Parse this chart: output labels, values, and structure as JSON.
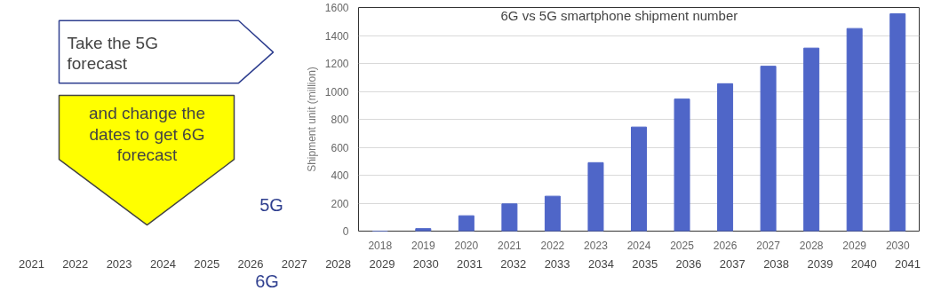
{
  "chart_data": {
    "type": "bar",
    "title": "6G vs 5G smartphone shipment number",
    "ylabel": "Shipment unit (million)",
    "categories": [
      "2018",
      "2019",
      "2020",
      "2021",
      "2022",
      "2023",
      "2024",
      "2025",
      "2026",
      "2027",
      "2028",
      "2029",
      "2030"
    ],
    "values": [
      0,
      18,
      110,
      195,
      250,
      490,
      745,
      945,
      1055,
      1180,
      1310,
      1450,
      1555
    ],
    "color": "#4f66c8",
    "ylim": [
      0,
      1600
    ],
    "yticks": [
      0,
      200,
      400,
      600,
      800,
      1000,
      1200,
      1400,
      1600
    ],
    "grid": "y",
    "annotations": [
      "Take the 5G forecast",
      "and change the dates to get 6G forecast",
      "5G",
      "6G",
      "2021",
      "2022",
      "2023",
      "2024",
      "2025",
      "2026",
      "2027",
      "2028",
      "2029",
      "2030",
      "2031",
      "2032",
      "2033",
      "2034",
      "2035",
      "2036",
      "2037",
      "2038",
      "2039",
      "2040",
      "2041"
    ]
  }
}
